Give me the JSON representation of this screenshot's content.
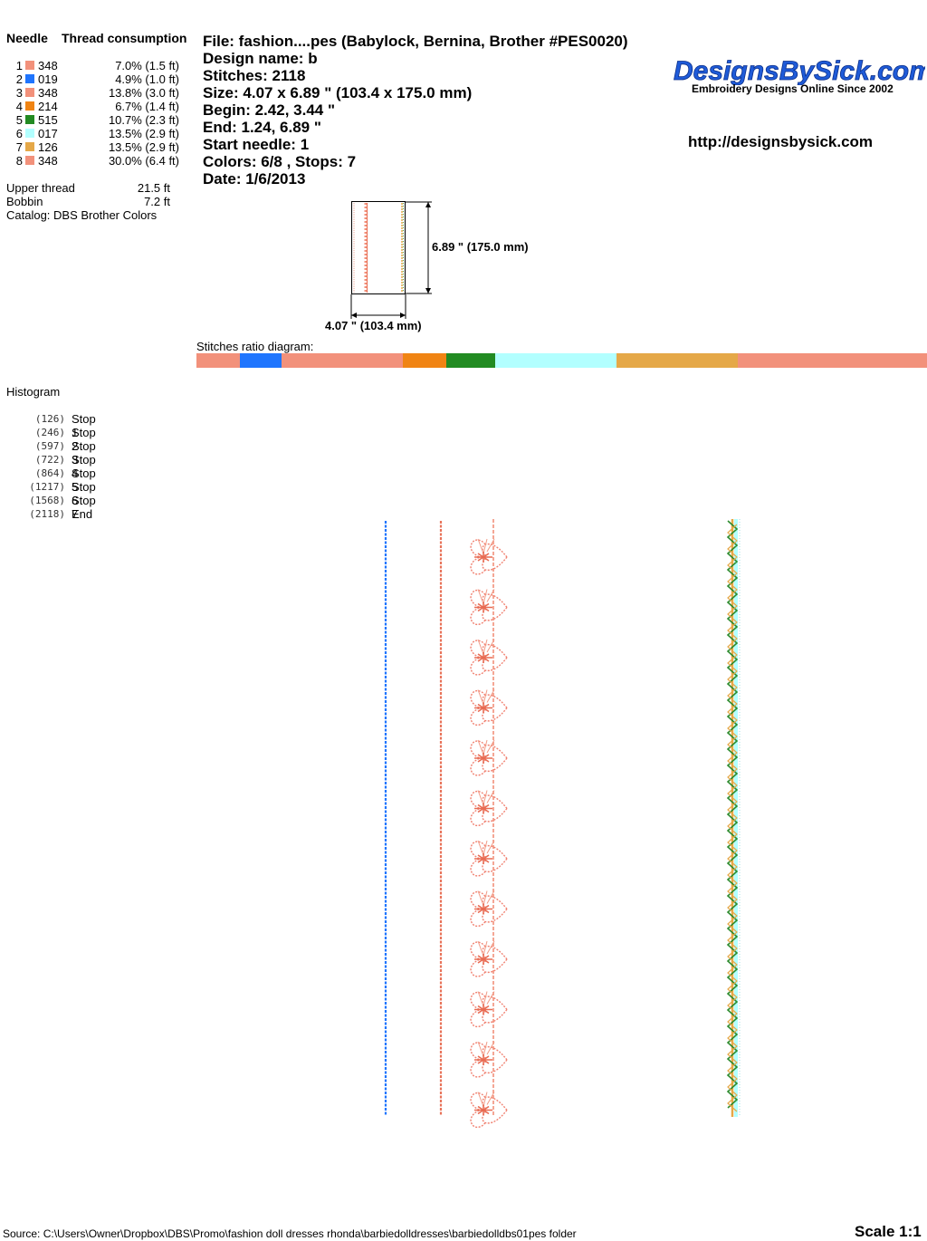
{
  "thread_table": {
    "header_needle": "Needle",
    "header_consumption": "Thread consumption",
    "rows": [
      {
        "needle": "1",
        "code": "348",
        "consumption": "7.0% (1.5 ft)",
        "color": "#F2917B"
      },
      {
        "needle": "2",
        "code": "019",
        "consumption": "4.9% (1.0 ft)",
        "color": "#1F75FE"
      },
      {
        "needle": "3",
        "code": "348",
        "consumption": "13.8% (3.0 ft)",
        "color": "#F2917B"
      },
      {
        "needle": "4",
        "code": "214",
        "consumption": "6.7% (1.4 ft)",
        "color": "#F08413"
      },
      {
        "needle": "5",
        "code": "515",
        "consumption": "10.7% (2.3 ft)",
        "color": "#228B22"
      },
      {
        "needle": "6",
        "code": "017",
        "consumption": "13.5% (2.9 ft)",
        "color": "#B2FFFF"
      },
      {
        "needle": "7",
        "code": "126",
        "consumption": "13.5% (2.9 ft)",
        "color": "#E5A848"
      },
      {
        "needle": "8",
        "code": "348",
        "consumption": "30.0% (6.4 ft)",
        "color": "#F2917B"
      }
    ],
    "upper_thread_label": "Upper thread",
    "upper_thread_value": "21.5 ft",
    "bobbin_label": "Bobbin",
    "bobbin_value": "7.2 ft",
    "catalog": "Catalog: DBS Brother Colors"
  },
  "design_info": {
    "file": "File: fashion....pes  (Babylock, Bernina, Brother #PES0020)",
    "name": "Design name: b",
    "stitches": "Stitches: 2118",
    "size": "Size: 4.07 x 6.89 \" (103.4 x 175.0 mm)",
    "begin": "Begin: 2.42, 3.44 \"",
    "end": "End: 1.24, 6.89 \"",
    "start_needle": "Start needle: 1",
    "colors_stops": "Colors: 6/8 , Stops: 7",
    "date": "Date: 1/6/2013"
  },
  "brand": {
    "logo_text": "DesignsBySick.com",
    "tagline": "Embroidery Designs Online Since 2002",
    "url": "http://designsbysick.com"
  },
  "thumbnail": {
    "height_label": "6.89 \" (175.0 mm)",
    "width_label": "4.07 \" (103.4 mm)"
  },
  "ratio": {
    "label": "Stitches ratio diagram:",
    "segments": [
      {
        "pct": 5.9,
        "color": "#F2917B"
      },
      {
        "pct": 5.7,
        "color": "#1F75FE"
      },
      {
        "pct": 16.6,
        "color": "#F2917B"
      },
      {
        "pct": 5.9,
        "color": "#F08413"
      },
      {
        "pct": 6.7,
        "color": "#228B22"
      },
      {
        "pct": 16.6,
        "color": "#B2FFFF"
      },
      {
        "pct": 16.6,
        "color": "#E5A848"
      },
      {
        "pct": 26.0,
        "color": "#F2917B"
      }
    ]
  },
  "histogram": {
    "title": "Histogram",
    "rows": [
      {
        "count": "(126)",
        "label": "Stop 1"
      },
      {
        "count": "(246)",
        "label": "Stop 2"
      },
      {
        "count": "(597)",
        "label": "Stop 3"
      },
      {
        "count": "(722)",
        "label": "Stop 4"
      },
      {
        "count": "(864)",
        "label": "Stop 5"
      },
      {
        "count": "(1217)",
        "label": "Stop 6"
      },
      {
        "count": "(1568)",
        "label": "Stop 7"
      },
      {
        "count": "(2118)",
        "label": "End"
      }
    ]
  },
  "footer": {
    "source": "Source: C:\\Users\\Owner\\Dropbox\\DBS\\Promo\\fashion doll dresses  rhonda\\barbiedolldresses\\barbiedolldbs01pes folder",
    "scale": "Scale 1:1"
  }
}
